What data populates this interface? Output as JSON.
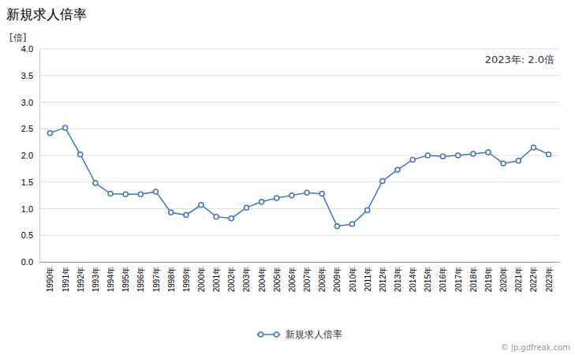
{
  "chart_data": {
    "type": "line",
    "title": "新規求人倍率",
    "ylabel": "[倍]",
    "annotation": "2023年: 2.0倍",
    "watermark": "© jp.gdfreak.com",
    "x": [
      1990,
      1991,
      1992,
      1993,
      1994,
      1995,
      1996,
      1997,
      1998,
      1999,
      2000,
      2001,
      2002,
      2003,
      2004,
      2005,
      2006,
      2007,
      2008,
      2009,
      2010,
      2011,
      2012,
      2013,
      2014,
      2015,
      2016,
      2017,
      2018,
      2019,
      2020,
      2021,
      2022,
      2023
    ],
    "series": [
      {
        "name": "新規求人倍率",
        "color": "#4472c4",
        "marker": "circle",
        "values": [
          2.42,
          2.52,
          2.02,
          1.48,
          1.28,
          1.27,
          1.27,
          1.32,
          0.93,
          0.88,
          1.07,
          0.85,
          0.82,
          1.02,
          1.13,
          1.2,
          1.25,
          1.3,
          1.28,
          0.67,
          0.71,
          0.97,
          1.52,
          1.73,
          1.92,
          2.0,
          1.98,
          2.0,
          2.03,
          2.06,
          1.85,
          1.9,
          2.15,
          2.02
        ]
      }
    ],
    "xlim": [
      1989.3,
      2023.7
    ],
    "xticks": [
      {
        "value": 1990,
        "label": "1990年"
      },
      {
        "value": 1991,
        "label": "1991年"
      },
      {
        "value": 1992,
        "label": "1992年"
      },
      {
        "value": 1993,
        "label": "1993年"
      },
      {
        "value": 1994,
        "label": "1994年"
      },
      {
        "value": 1995,
        "label": "1995年"
      },
      {
        "value": 1996,
        "label": "1996年"
      },
      {
        "value": 1997,
        "label": "1997年"
      },
      {
        "value": 1998,
        "label": "1998年"
      },
      {
        "value": 1999,
        "label": "1999年"
      },
      {
        "value": 2000,
        "label": "2000年"
      },
      {
        "value": 2001,
        "label": "2001年"
      },
      {
        "value": 2002,
        "label": "2002年"
      },
      {
        "value": 2003,
        "label": "2003年"
      },
      {
        "value": 2004,
        "label": "2004年"
      },
      {
        "value": 2005,
        "label": "2005年"
      },
      {
        "value": 2006,
        "label": "2006年"
      },
      {
        "value": 2007,
        "label": "2007年"
      },
      {
        "value": 2008,
        "label": "2008年"
      },
      {
        "value": 2009,
        "label": "2009年"
      },
      {
        "value": 2010,
        "label": "2010年"
      },
      {
        "value": 2011,
        "label": "2011年"
      },
      {
        "value": 2012,
        "label": "2012年"
      },
      {
        "value": 2013,
        "label": "2013年"
      },
      {
        "value": 2014,
        "label": "2014年"
      },
      {
        "value": 2015,
        "label": "2015年"
      },
      {
        "value": 2016,
        "label": "2016年"
      },
      {
        "value": 2017,
        "label": "2017年"
      },
      {
        "value": 2018,
        "label": "2018年"
      },
      {
        "value": 2019,
        "label": "2019年"
      },
      {
        "value": 2020,
        "label": "2020年"
      },
      {
        "value": 2021,
        "label": "2021年"
      },
      {
        "value": 2022,
        "label": "2022年"
      },
      {
        "value": 2023,
        "label": "2023年"
      }
    ],
    "ylim": [
      0.0,
      4.0
    ],
    "yticks": [
      {
        "value": 0.0,
        "label": "0.0"
      },
      0.5,
      {
        "value": 1.0,
        "label": "1.0"
      },
      1.5,
      {
        "value": 2.0,
        "label": "2.0"
      },
      2.5,
      {
        "value": 3.0,
        "label": "3.0"
      },
      3.5,
      {
        "value": 4.0,
        "label": "4.0"
      }
    ],
    "grid": true,
    "legend": "bottom"
  }
}
